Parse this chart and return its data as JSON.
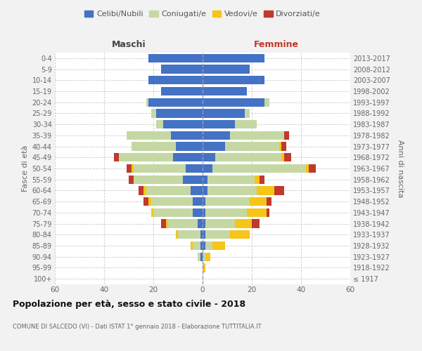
{
  "age_groups": [
    "100+",
    "95-99",
    "90-94",
    "85-89",
    "80-84",
    "75-79",
    "70-74",
    "65-69",
    "60-64",
    "55-59",
    "50-54",
    "45-49",
    "40-44",
    "35-39",
    "30-34",
    "25-29",
    "20-24",
    "15-19",
    "10-14",
    "5-9",
    "0-4"
  ],
  "birth_years": [
    "≤ 1917",
    "1918-1922",
    "1923-1927",
    "1928-1932",
    "1933-1937",
    "1938-1942",
    "1943-1947",
    "1948-1952",
    "1953-1957",
    "1958-1962",
    "1963-1967",
    "1968-1972",
    "1973-1977",
    "1978-1982",
    "1983-1987",
    "1988-1992",
    "1993-1997",
    "1998-2002",
    "2003-2007",
    "2008-2012",
    "2013-2017"
  ],
  "maschi": {
    "celibi": [
      0,
      0,
      1,
      1,
      1,
      2,
      4,
      4,
      5,
      8,
      7,
      12,
      11,
      13,
      16,
      19,
      22,
      17,
      22,
      17,
      22
    ],
    "coniugati": [
      0,
      0,
      1,
      3,
      9,
      12,
      16,
      17,
      18,
      20,
      21,
      22,
      18,
      18,
      3,
      2,
      1,
      0,
      0,
      0,
      0
    ],
    "vedovi": [
      0,
      0,
      0,
      1,
      1,
      1,
      1,
      1,
      1,
      0,
      1,
      0,
      0,
      0,
      0,
      0,
      0,
      0,
      0,
      0,
      0
    ],
    "divorziati": [
      0,
      0,
      0,
      0,
      0,
      2,
      0,
      2,
      2,
      2,
      2,
      2,
      0,
      0,
      0,
      0,
      0,
      0,
      0,
      0,
      0
    ]
  },
  "femmine": {
    "nubili": [
      0,
      0,
      0,
      1,
      1,
      1,
      1,
      1,
      2,
      2,
      4,
      5,
      9,
      11,
      13,
      17,
      25,
      18,
      25,
      19,
      25
    ],
    "coniugate": [
      0,
      0,
      1,
      3,
      10,
      12,
      17,
      18,
      20,
      19,
      38,
      27,
      22,
      22,
      9,
      2,
      2,
      0,
      0,
      0,
      0
    ],
    "vedove": [
      0,
      1,
      2,
      5,
      8,
      7,
      8,
      7,
      7,
      2,
      1,
      1,
      1,
      0,
      0,
      0,
      0,
      0,
      0,
      0,
      0
    ],
    "divorziate": [
      0,
      0,
      0,
      0,
      0,
      3,
      1,
      2,
      4,
      2,
      3,
      3,
      2,
      2,
      0,
      0,
      0,
      0,
      0,
      0,
      0
    ]
  },
  "colors": {
    "celibi": "#4472c4",
    "coniugati": "#c5d8a4",
    "vedovi": "#f5c518",
    "divorziati": "#c0392b"
  },
  "xlim": 60,
  "title": "Popolazione per età, sesso e stato civile - 2018",
  "subtitle": "COMUNE DI SALCEDO (VI) - Dati ISTAT 1° gennaio 2018 - Elaborazione TUTTITALIA.IT",
  "ylabel_left": "Fasce di età",
  "ylabel_right": "Anni di nascita",
  "xlabel_maschi": "Maschi",
  "xlabel_femmine": "Femmine",
  "legend_labels": [
    "Celibi/Nubili",
    "Coniugati/e",
    "Vedovi/e",
    "Divorziati/e"
  ],
  "bg_color": "#f2f2f2",
  "plot_bg_color": "#ffffff"
}
